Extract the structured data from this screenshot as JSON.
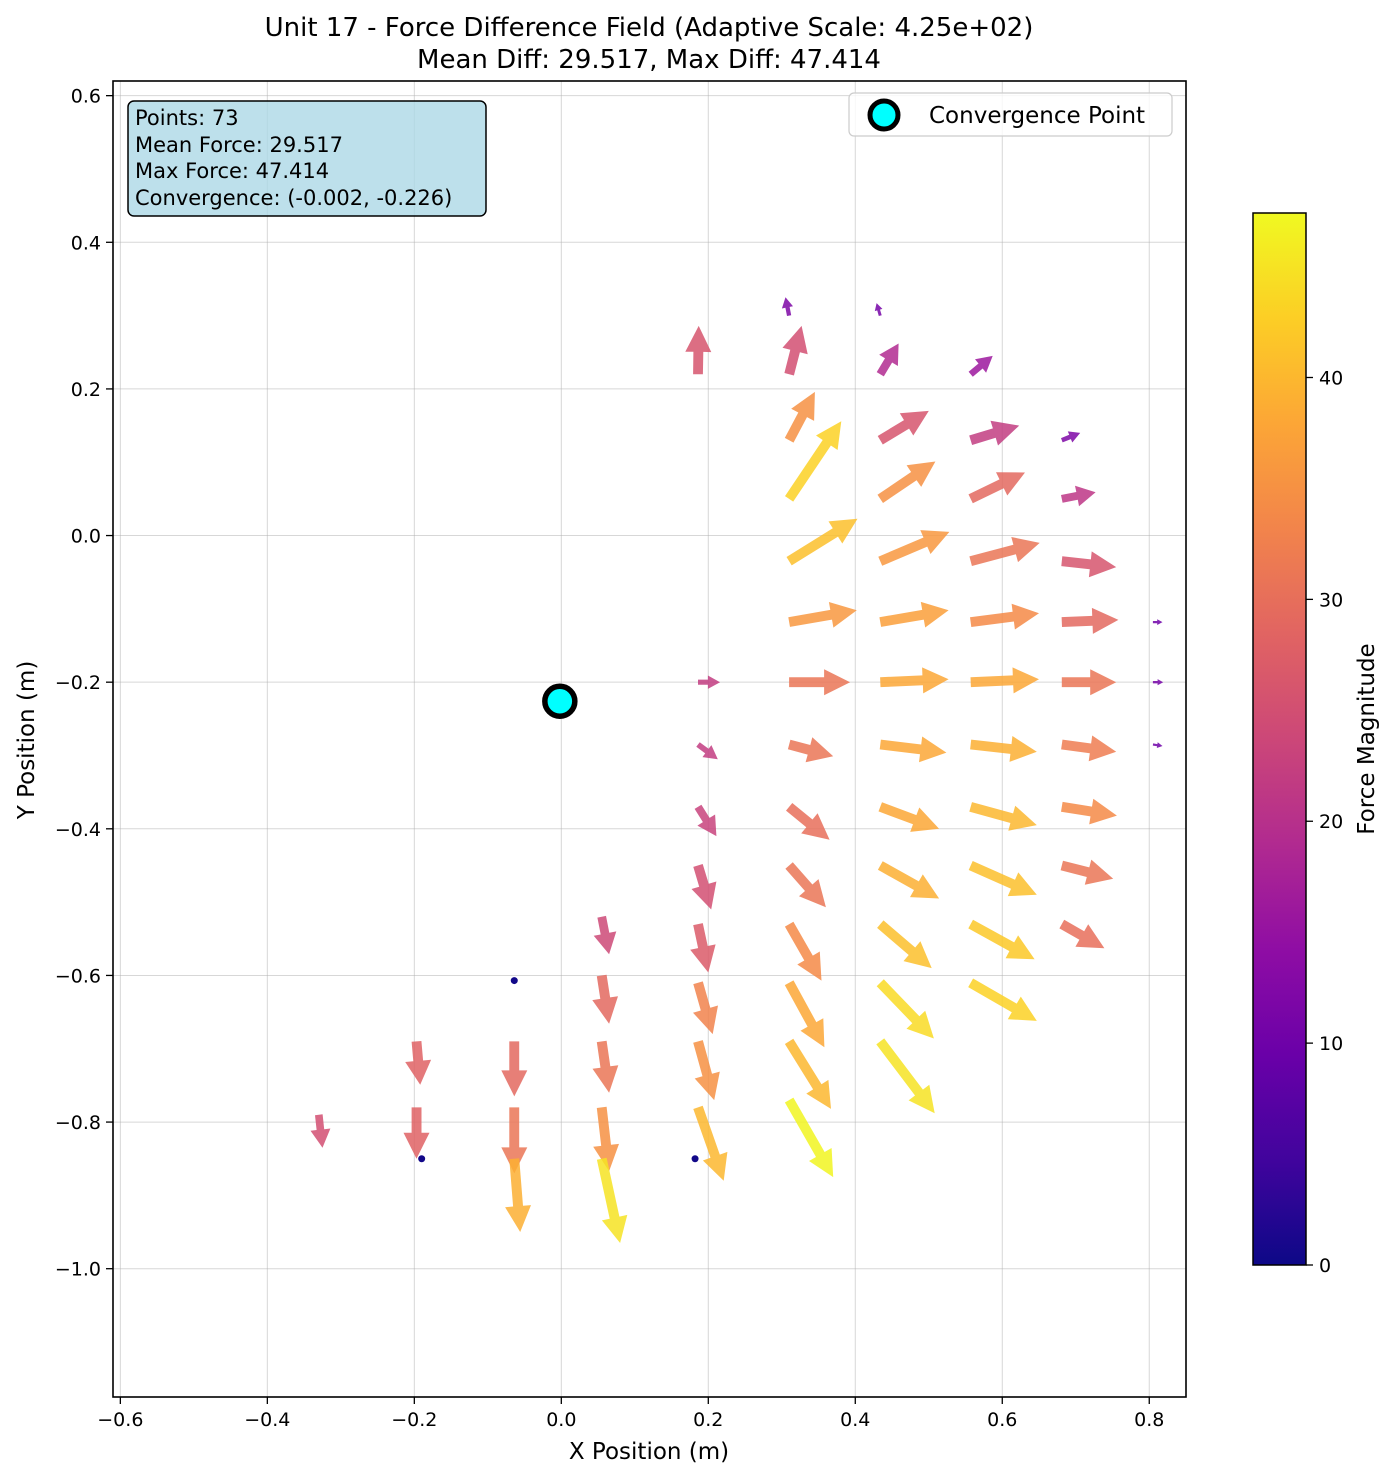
{
  "chart_data": {
    "type": "quiver",
    "title_line1": "Unit 17 - Force Difference Field (Adaptive Scale: 4.25e+02)",
    "title_line2": "Mean Diff: 29.517, Max Diff: 47.414",
    "xlabel": "X Position (m)",
    "ylabel": "Y Position (m)",
    "xlim": [
      -0.61,
      0.85
    ],
    "ylim": [
      -1.175,
      0.62
    ],
    "xticks": [
      -0.6,
      -0.4,
      -0.2,
      0.0,
      0.2,
      0.4,
      0.6,
      0.8
    ],
    "xtick_labels": [
      "−0.6",
      "−0.4",
      "−0.2",
      "0.0",
      "0.2",
      "0.4",
      "0.6",
      "0.8"
    ],
    "yticks": [
      0.6,
      0.4,
      0.2,
      0.0,
      -0.2,
      -0.4,
      -0.6,
      -0.8,
      -1.0
    ],
    "ytick_labels": [
      "0.6",
      "0.4",
      "0.2",
      "0.0",
      "−0.2",
      "−0.4",
      "−0.6",
      "−0.8",
      "−1.0"
    ],
    "grid": true,
    "colormap": "plasma",
    "colorbar": {
      "label": "Force Magnitude",
      "range": [
        0,
        47.414
      ],
      "ticks": [
        0,
        10,
        20,
        30,
        40
      ],
      "tick_labels": [
        "0",
        "10",
        "20",
        "30",
        "40"
      ]
    },
    "legend": {
      "position": "upper right",
      "entries": [
        {
          "label": "Convergence Point",
          "marker": "circle",
          "face": "#00ffff",
          "edge": "#000000"
        }
      ]
    },
    "info_box": {
      "lines": [
        "Points: 73",
        "Mean Force: 29.517",
        "Max Force: 47.414",
        "Convergence: (-0.002, -0.226)"
      ],
      "background": "#add8e6"
    },
    "convergence_point": {
      "x": -0.002,
      "y": -0.226
    },
    "arrows": [
      {
        "x": 0.186,
        "y": 0.22,
        "u": 0.001,
        "v": 0.066,
        "m": 26
      },
      {
        "x": 0.31,
        "y": 0.22,
        "u": 0.017,
        "v": 0.066,
        "m": 25
      },
      {
        "x": 0.434,
        "y": 0.22,
        "u": 0.025,
        "v": 0.042,
        "m": 19
      },
      {
        "x": 0.557,
        "y": 0.22,
        "u": 0.03,
        "v": 0.025,
        "m": 16
      },
      {
        "x": 0.31,
        "y": 0.3,
        "u": -0.005,
        "v": 0.025,
        "m": 12
      },
      {
        "x": 0.434,
        "y": 0.3,
        "u": -0.005,
        "v": 0.017,
        "m": 11
      },
      {
        "x": 0.31,
        "y": 0.13,
        "u": 0.035,
        "v": 0.066,
        "m": 35
      },
      {
        "x": 0.434,
        "y": 0.13,
        "u": 0.066,
        "v": 0.04,
        "m": 26
      },
      {
        "x": 0.557,
        "y": 0.13,
        "u": 0.066,
        "v": 0.02,
        "m": 22
      },
      {
        "x": 0.681,
        "y": 0.13,
        "u": 0.025,
        "v": 0.01,
        "m": 12
      },
      {
        "x": 0.31,
        "y": 0.05,
        "u": 0.071,
        "v": 0.106,
        "m": 43
      },
      {
        "x": 0.434,
        "y": 0.05,
        "u": 0.075,
        "v": 0.051,
        "m": 35
      },
      {
        "x": 0.557,
        "y": 0.05,
        "u": 0.074,
        "v": 0.036,
        "m": 29
      },
      {
        "x": 0.681,
        "y": 0.05,
        "u": 0.046,
        "v": 0.009,
        "m": 21
      },
      {
        "x": 0.31,
        "y": -0.035,
        "u": 0.093,
        "v": 0.058,
        "m": 41
      },
      {
        "x": 0.434,
        "y": -0.035,
        "u": 0.094,
        "v": 0.04,
        "m": 36
      },
      {
        "x": 0.557,
        "y": -0.035,
        "u": 0.094,
        "v": 0.025,
        "m": 31
      },
      {
        "x": 0.681,
        "y": -0.035,
        "u": 0.074,
        "v": -0.008,
        "m": 26
      },
      {
        "x": 0.31,
        "y": -0.118,
        "u": 0.092,
        "v": 0.016,
        "m": 36
      },
      {
        "x": 0.434,
        "y": -0.118,
        "u": 0.093,
        "v": 0.016,
        "m": 37
      },
      {
        "x": 0.557,
        "y": -0.118,
        "u": 0.093,
        "v": 0.012,
        "m": 34
      },
      {
        "x": 0.681,
        "y": -0.118,
        "u": 0.077,
        "v": 0.003,
        "m": 29
      },
      {
        "x": 0.805,
        "y": -0.118,
        "u": 0.013,
        "v": 0.0,
        "m": 10
      },
      {
        "x": 0.186,
        "y": -0.2,
        "u": 0.03,
        "v": 0.0,
        "m": 22
      },
      {
        "x": 0.31,
        "y": -0.2,
        "u": 0.083,
        "v": 0.0,
        "m": 31
      },
      {
        "x": 0.434,
        "y": -0.2,
        "u": 0.093,
        "v": 0.004,
        "m": 38
      },
      {
        "x": 0.557,
        "y": -0.2,
        "u": 0.093,
        "v": 0.004,
        "m": 38
      },
      {
        "x": 0.681,
        "y": -0.2,
        "u": 0.074,
        "v": 0.0,
        "m": 31
      },
      {
        "x": 0.805,
        "y": -0.2,
        "u": 0.014,
        "v": 0.0,
        "m": 11
      },
      {
        "x": 0.186,
        "y": -0.285,
        "u": 0.027,
        "v": -0.02,
        "m": 22
      },
      {
        "x": 0.31,
        "y": -0.285,
        "u": 0.06,
        "v": -0.016,
        "m": 31
      },
      {
        "x": 0.434,
        "y": -0.285,
        "u": 0.09,
        "v": -0.011,
        "m": 38
      },
      {
        "x": 0.557,
        "y": -0.285,
        "u": 0.09,
        "v": -0.01,
        "m": 39
      },
      {
        "x": 0.681,
        "y": -0.285,
        "u": 0.074,
        "v": -0.01,
        "m": 32
      },
      {
        "x": 0.805,
        "y": -0.285,
        "u": 0.013,
        "v": -0.002,
        "m": 10
      },
      {
        "x": 0.186,
        "y": -0.37,
        "u": 0.025,
        "v": -0.04,
        "m": 23
      },
      {
        "x": 0.31,
        "y": -0.37,
        "u": 0.055,
        "v": -0.045,
        "m": 30
      },
      {
        "x": 0.434,
        "y": -0.37,
        "u": 0.08,
        "v": -0.03,
        "m": 38
      },
      {
        "x": 0.557,
        "y": -0.37,
        "u": 0.09,
        "v": -0.025,
        "m": 40
      },
      {
        "x": 0.681,
        "y": -0.37,
        "u": 0.075,
        "v": -0.012,
        "m": 34
      },
      {
        "x": 0.186,
        "y": -0.45,
        "u": 0.018,
        "v": -0.06,
        "m": 25
      },
      {
        "x": 0.31,
        "y": -0.45,
        "u": 0.05,
        "v": -0.057,
        "m": 31
      },
      {
        "x": 0.434,
        "y": -0.45,
        "u": 0.08,
        "v": -0.045,
        "m": 39
      },
      {
        "x": 0.557,
        "y": -0.45,
        "u": 0.09,
        "v": -0.04,
        "m": 41
      },
      {
        "x": 0.681,
        "y": -0.45,
        "u": 0.07,
        "v": -0.018,
        "m": 31
      },
      {
        "x": 0.055,
        "y": -0.52,
        "u": 0.01,
        "v": -0.051,
        "m": 24
      },
      {
        "x": 0.186,
        "y": -0.53,
        "u": 0.014,
        "v": -0.066,
        "m": 27
      },
      {
        "x": 0.31,
        "y": -0.53,
        "u": 0.044,
        "v": -0.077,
        "m": 34
      },
      {
        "x": 0.434,
        "y": -0.53,
        "u": 0.07,
        "v": -0.06,
        "m": 41
      },
      {
        "x": 0.557,
        "y": -0.53,
        "u": 0.087,
        "v": -0.048,
        "m": 42
      },
      {
        "x": 0.681,
        "y": -0.53,
        "u": 0.058,
        "v": -0.033,
        "m": 30
      },
      {
        "x": -0.064,
        "y": -0.607,
        "u": 0.0,
        "v": 0.0,
        "m": 0.5
      },
      {
        "x": 0.055,
        "y": -0.6,
        "u": 0.01,
        "v": -0.066,
        "m": 29
      },
      {
        "x": 0.186,
        "y": -0.61,
        "u": 0.02,
        "v": -0.07,
        "m": 33
      },
      {
        "x": 0.31,
        "y": -0.61,
        "u": 0.048,
        "v": -0.088,
        "m": 38
      },
      {
        "x": 0.434,
        "y": -0.61,
        "u": 0.073,
        "v": -0.076,
        "m": 44
      },
      {
        "x": 0.557,
        "y": -0.61,
        "u": 0.09,
        "v": -0.052,
        "m": 43
      },
      {
        "x": -0.197,
        "y": -0.69,
        "u": 0.005,
        "v": -0.059,
        "m": 28
      },
      {
        "x": -0.064,
        "y": -0.69,
        "u": 0.0,
        "v": -0.075,
        "m": 29
      },
      {
        "x": 0.055,
        "y": -0.69,
        "u": 0.01,
        "v": -0.07,
        "m": 31
      },
      {
        "x": 0.186,
        "y": -0.69,
        "u": 0.022,
        "v": -0.08,
        "m": 35
      },
      {
        "x": 0.31,
        "y": -0.69,
        "u": 0.057,
        "v": -0.092,
        "m": 40
      },
      {
        "x": 0.434,
        "y": -0.69,
        "u": 0.074,
        "v": -0.098,
        "m": 45
      },
      {
        "x": -0.33,
        "y": -0.79,
        "u": 0.005,
        "v": -0.045,
        "m": 25
      },
      {
        "x": -0.197,
        "y": -0.78,
        "u": 0.0,
        "v": -0.07,
        "m": 28
      },
      {
        "x": -0.064,
        "y": -0.78,
        "u": 0.0,
        "v": -0.09,
        "m": 31
      },
      {
        "x": 0.055,
        "y": -0.78,
        "u": 0.01,
        "v": -0.087,
        "m": 35
      },
      {
        "x": 0.186,
        "y": -0.78,
        "u": 0.035,
        "v": -0.1,
        "m": 40
      },
      {
        "x": 0.31,
        "y": -0.77,
        "u": 0.06,
        "v": -0.105,
        "m": 47
      },
      {
        "x": -0.064,
        "y": -0.85,
        "u": 0.008,
        "v": -0.1,
        "m": 39
      },
      {
        "x": 0.055,
        "y": -0.85,
        "u": 0.025,
        "v": -0.115,
        "m": 45
      },
      {
        "x": -0.19,
        "y": -0.85,
        "u": 0.0,
        "v": 0.0,
        "m": 0.5
      },
      {
        "x": 0.182,
        "y": -0.85,
        "u": 0.0,
        "v": 0.0,
        "m": 0.5
      }
    ]
  }
}
